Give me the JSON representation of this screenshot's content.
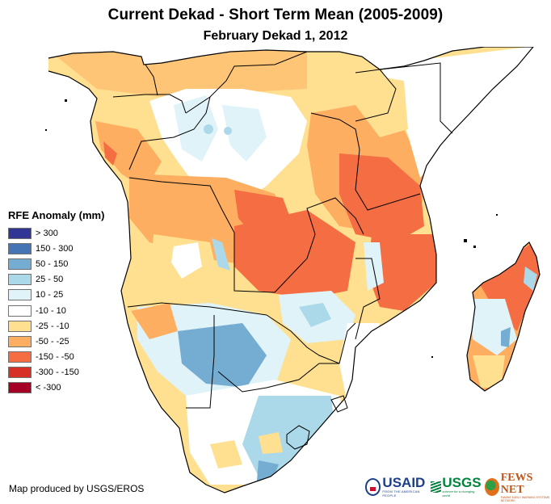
{
  "title": "Current Dekad - Short Term Mean (2005-2009)",
  "subtitle": "February Dekad 1, 2012",
  "legend": {
    "title": "RFE Anomaly (mm)",
    "items": [
      {
        "label": "> 300",
        "color": "#313695"
      },
      {
        "label": "150 - 300",
        "color": "#4575b4"
      },
      {
        "label": "50 - 150",
        "color": "#74add1"
      },
      {
        "label": "25 - 50",
        "color": "#abd9e9"
      },
      {
        "label": "10 - 25",
        "color": "#e0f3f8"
      },
      {
        "label": "-10 - 10",
        "color": "#ffffff"
      },
      {
        "label": "-25 - -10",
        "color": "#fee090"
      },
      {
        "label": "-50 - -25",
        "color": "#fdae61"
      },
      {
        "label": "-150 - -50",
        "color": "#f46d43"
      },
      {
        "label": "-300 - -150",
        "color": "#d73027"
      },
      {
        "label": "< -300",
        "color": "#a50026"
      }
    ]
  },
  "credit": "Map produced by USGS/EROS",
  "logos": {
    "usaid": {
      "name": "USAID",
      "tagline": "FROM THE AMERICAN PEOPLE"
    },
    "usgs": {
      "name": "USGS",
      "tagline": "science for a changing world"
    },
    "fewsnet": {
      "name": "FEWS NET",
      "tagline": "FAMINE EARLY WARNING SYSTEMS NETWORK"
    }
  },
  "map": {
    "region": "Southern and Central Africa with Madagascar",
    "variable": "Rainfall estimate (RFE) anomaly",
    "regions": [
      {
        "name": "west-central-coast",
        "class": "-50 - -25"
      },
      {
        "name": "congo-basin-center",
        "class": "10 - 25"
      },
      {
        "name": "tanzania",
        "class": "-150 - -50"
      },
      {
        "name": "zambia-mozambique-north",
        "class": "-150 - -50"
      },
      {
        "name": "kenya-somalia",
        "class": "-10 - 10"
      },
      {
        "name": "botswana-namibia",
        "class": "50 - 150"
      },
      {
        "name": "south-africa",
        "class": "25 - 50"
      },
      {
        "name": "madagascar-northeast",
        "class": "-150 - -50"
      },
      {
        "name": "madagascar-south",
        "class": "-50 - -25"
      }
    ]
  }
}
